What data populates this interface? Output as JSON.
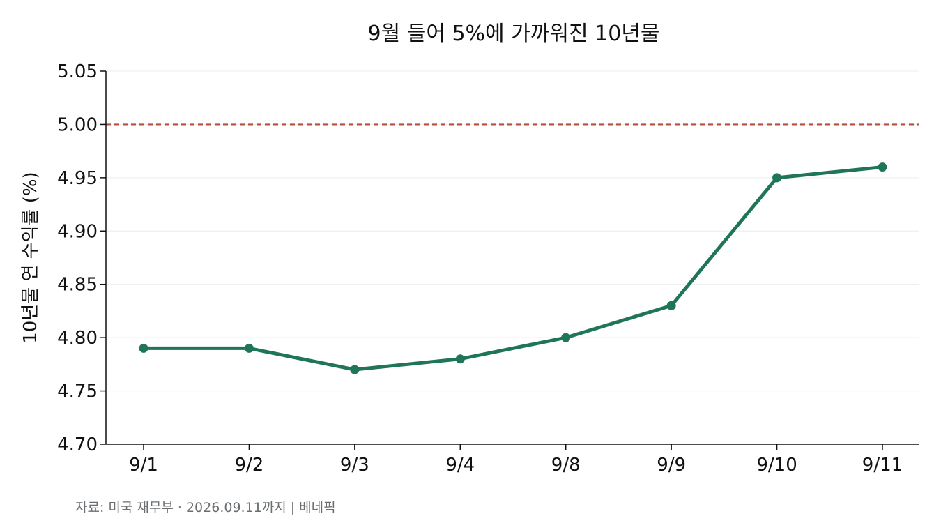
{
  "chart_data": {
    "type": "line",
    "title": "9월 들어 5%에 가까워진 10년물",
    "xlabel": "",
    "ylabel": "10년물 연 수익률 (%)",
    "categories": [
      "9/1",
      "9/2",
      "9/3",
      "9/4",
      "9/8",
      "9/9",
      "9/10",
      "9/11"
    ],
    "values": [
      4.79,
      4.79,
      4.77,
      4.78,
      4.8,
      4.83,
      4.95,
      4.96
    ],
    "ylim": [
      4.7,
      5.05
    ],
    "yticks": [
      "4.70",
      "4.75",
      "4.80",
      "4.85",
      "4.90",
      "4.95",
      "5.00",
      "5.05"
    ],
    "reference_line": {
      "value": 5.0,
      "style": "dashed",
      "color": "#b5523e"
    },
    "line_color": "#1f7558",
    "grid": "horizontal",
    "legend": "none",
    "source": "자료: 미국 재무부 · 2026.09.11까지 | 베네픽"
  }
}
